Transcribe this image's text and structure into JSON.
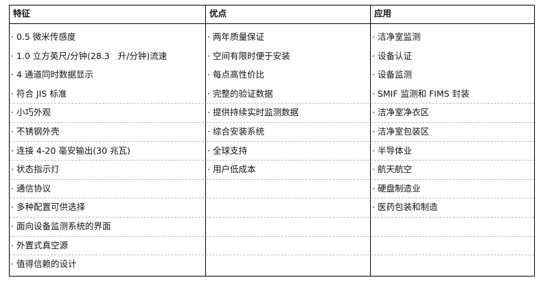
{
  "columns": [
    {
      "header": "特征",
      "items": [
        "· 0.5 微米传感度",
        "· 1.0 立方英尺/分钟(28.3   升/分钟)流速",
        "· 4 通道同时数据显示",
        "· 符合 JIS 标准",
        "· 小巧外观",
        "· 不锈钢外壳",
        "· 连接 4-20 毫安输出(30 兆瓦)",
        "· 状态指示灯",
        "· 通信协议",
        "· 多种配置可供选择",
        "· 面向设备监测系统的界面",
        "· 外置式真空源",
        "· 值得信赖的设计"
      ]
    },
    {
      "header": "优点",
      "items": [
        "· 两年质量保证",
        "· 空间有限时便于安装",
        "· 每点高性价比",
        "· 完整的验证数据",
        "· 提供持续实时监测数据",
        "· 综合安装系统",
        "· 全球支持",
        "· 用户低成本"
      ]
    },
    {
      "header": "应用",
      "items": [
        "· 洁净室监测",
        "· 设备认证",
        "· 设备监测",
        "· SMIF 监测和 FIMS 封装",
        "· 洁净室净衣区",
        "· 洁净室包装区",
        "· 半导体业",
        "· 航天航空",
        "· 硬盘制造业",
        "· 医药包装和制造"
      ]
    }
  ]
}
